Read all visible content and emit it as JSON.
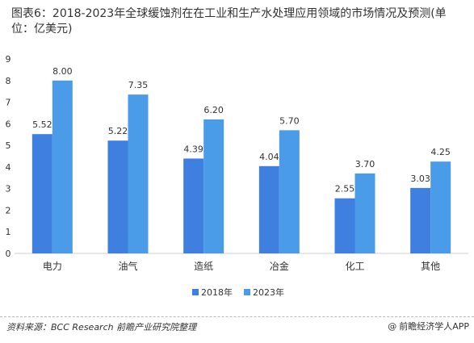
{
  "chart_data": {
    "type": "bar",
    "title": "图表6：2018-2023年全球缓蚀剂在在工业和生产水处理应用领域的市场情况及预测(单位：亿美元)",
    "categories": [
      "电力",
      "油气",
      "造纸",
      "冶金",
      "化工",
      "其他"
    ],
    "series": [
      {
        "name": "2018年",
        "values": [
          5.52,
          5.22,
          4.39,
          4.04,
          2.55,
          3.03
        ],
        "color": "#3f7fdf"
      },
      {
        "name": "2023年",
        "values": [
          8.0,
          7.35,
          6.2,
          5.7,
          3.7,
          4.25
        ],
        "color": "#4a9be8"
      }
    ],
    "data_labels": [
      [
        "5.52",
        "5.22",
        "4.39",
        "4.04",
        "2.55",
        "3.03"
      ],
      [
        "8.00",
        "7.35",
        "6.20",
        "5.70",
        "3.70",
        "4.25"
      ]
    ],
    "ylim": [
      0,
      9
    ],
    "yticks": [
      "0",
      "1",
      "2",
      "3",
      "4",
      "5",
      "6",
      "7",
      "8",
      "9"
    ],
    "grid": false,
    "legend": "bottom-center",
    "xlabel": "",
    "ylabel": ""
  },
  "footer": {
    "source": "资料来源：BCC Research 前瞻产业研究院整理",
    "brand_at": "@",
    "brand": "前瞻经济学人APP"
  }
}
